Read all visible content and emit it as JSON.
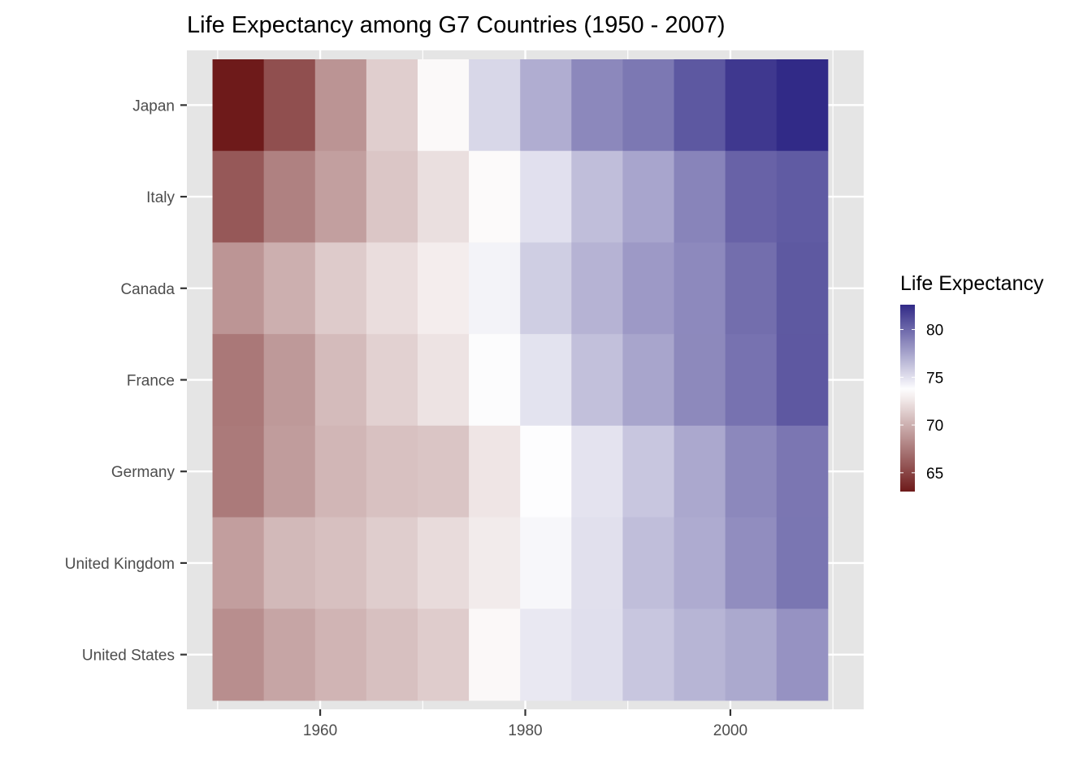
{
  "chart_data": {
    "type": "heatmap",
    "title": "Life Expectancy among G7 Countries (1950 - 2007)",
    "xlabel": "",
    "ylabel": "",
    "x": [
      1952,
      1957,
      1962,
      1967,
      1972,
      1977,
      1982,
      1987,
      1992,
      1997,
      2002,
      2007
    ],
    "x_ticks": [
      1960,
      1980,
      2000
    ],
    "x_minor_ticks": [
      1950,
      1970,
      1990,
      2010
    ],
    "xlim": [
      1947,
      2013
    ],
    "rows": [
      "Japan",
      "Italy",
      "Canada",
      "France",
      "Germany",
      "United Kingdom",
      "United States"
    ],
    "values": [
      [
        63.03,
        65.5,
        68.73,
        71.43,
        73.42,
        75.38,
        77.11,
        78.67,
        79.36,
        80.69,
        82.0,
        82.6
      ],
      [
        65.94,
        67.81,
        69.24,
        71.06,
        72.19,
        73.48,
        74.98,
        76.42,
        77.44,
        78.82,
        80.24,
        80.55
      ],
      [
        68.75,
        69.96,
        71.3,
        72.13,
        72.88,
        74.21,
        75.76,
        76.86,
        77.95,
        78.61,
        79.77,
        80.65
      ],
      [
        67.41,
        68.93,
        70.51,
        71.55,
        72.38,
        73.83,
        74.89,
        76.34,
        77.46,
        78.64,
        79.59,
        80.66
      ],
      [
        67.5,
        69.1,
        70.3,
        70.8,
        71.0,
        72.5,
        73.8,
        74.85,
        76.07,
        77.34,
        78.67,
        79.41
      ],
      [
        69.18,
        70.42,
        70.76,
        71.36,
        72.01,
        72.76,
        74.04,
        75.01,
        76.42,
        77.22,
        78.47,
        79.43
      ],
      [
        68.44,
        69.49,
        70.21,
        70.76,
        71.34,
        73.38,
        74.65,
        75.02,
        76.09,
        76.81,
        77.31,
        78.24
      ]
    ],
    "legend": {
      "title": "Life Expectancy",
      "placement": "right",
      "breaks": [
        65,
        70,
        75,
        80
      ],
      "range": [
        63.03,
        82.6
      ],
      "midpoint": 73.7,
      "low_color": "#6E1A1A",
      "mid_color": "#FFFFFF",
      "high_color": "#312A87"
    },
    "grid": true,
    "panel_background": "#E5E5E5"
  }
}
